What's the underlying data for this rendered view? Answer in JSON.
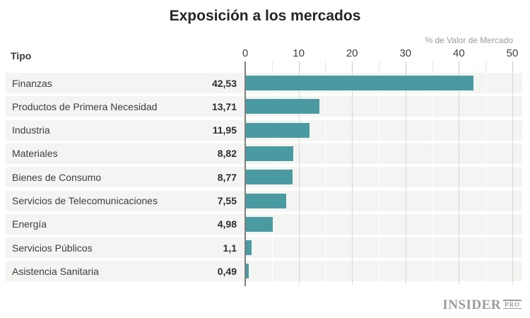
{
  "title": "Exposición a los mercados",
  "axis_note": "% de Valor de Mercado",
  "type_header": "Tipo",
  "logo": {
    "main": "INSIDER",
    "sub": "PRO"
  },
  "colors": {
    "bar": "#4A9BA1",
    "row_stripe": "#F4F4F2",
    "axis_line": "#7E7E7E",
    "grid_major": "#D8D8D8",
    "grid_minor": "#FFFFFF",
    "tick_major": "#C8C8C8",
    "tick_minor": "#E3E3E3"
  },
  "chart_data": {
    "type": "bar",
    "orientation": "horizontal",
    "title": "Exposición a los mercados",
    "xlabel": "% de Valor de Mercado",
    "ylabel": "Tipo",
    "categories": [
      "Finanzas",
      "Productos de Primera Necesidad",
      "Industria",
      "Materiales",
      "Bienes de Consumo",
      "Servicios de Telecomunicaciones",
      "Energía",
      "Servicios Públicos",
      "Asistencia Sanitaria"
    ],
    "values": [
      42.53,
      13.71,
      11.95,
      8.82,
      8.77,
      7.55,
      4.98,
      1.1,
      0.49
    ],
    "value_labels": [
      "42,53",
      "13,71",
      "11,95",
      "8,82",
      "8,77",
      "7,55",
      "4,98",
      "1,1",
      "0,49"
    ],
    "xlim": [
      0,
      50
    ],
    "xticks": [
      0,
      10,
      20,
      30,
      40,
      50
    ],
    "minor_tick_step": 5,
    "grid": true,
    "legend_position": "none"
  }
}
